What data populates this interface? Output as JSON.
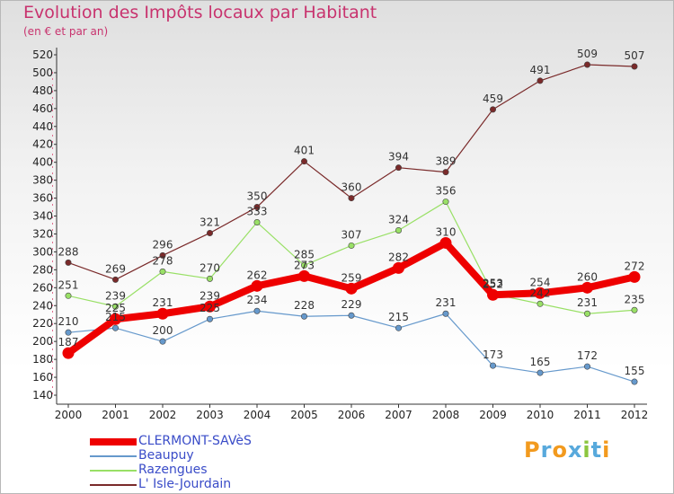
{
  "title": "Evolution des Impôts locaux par Habitant",
  "subtitle": "(en € et par an)",
  "logo": {
    "text": "Proxiti",
    "letters": [
      {
        "ch": "P",
        "color": "#f29a1e"
      },
      {
        "ch": "r",
        "color": "#58a9dc"
      },
      {
        "ch": "o",
        "color": "#f29a1e"
      },
      {
        "ch": "x",
        "color": "#58a9dc"
      },
      {
        "ch": "i",
        "color": "#8cc63f"
      },
      {
        "ch": "t",
        "color": "#58a9dc"
      },
      {
        "ch": "i",
        "color": "#f29a1e"
      }
    ]
  },
  "chart_data": {
    "type": "line",
    "title": "Evolution des Impôts locaux par Habitant",
    "subtitle": "(en € et par an)",
    "xlabel": "",
    "ylabel": "",
    "x": [
      "2000",
      "2001",
      "2002",
      "2003",
      "2004",
      "2005",
      "2006",
      "2007",
      "2008",
      "2009",
      "2010",
      "2011",
      "2012"
    ],
    "ylim": [
      140,
      520
    ],
    "yticks": [
      140,
      160,
      180,
      200,
      220,
      240,
      260,
      280,
      300,
      320,
      340,
      360,
      380,
      400,
      420,
      440,
      460,
      480,
      500,
      520
    ],
    "grid": false,
    "legend_position": "bottom-left",
    "series": [
      {
        "name": "CLERMONT-SAVèS",
        "color": "#ee0000",
        "emphasis": "thick",
        "values": [
          187,
          225,
          231,
          239,
          262,
          273,
          259,
          282,
          310,
          252,
          254,
          260,
          272
        ],
        "labels": [
          "187",
          "225",
          "231",
          "239",
          "262",
          "273",
          "259",
          "282",
          "310",
          "252",
          "254",
          "260",
          "272"
        ]
      },
      {
        "name": "Beaupuy",
        "color": "#6699cc",
        "emphasis": "thin",
        "values": [
          210,
          215,
          200,
          225,
          234,
          228,
          229,
          215,
          231,
          173,
          165,
          172,
          155
        ],
        "labels": [
          "210",
          "215",
          "200",
          "225",
          "234",
          "228",
          "229",
          "215",
          "231",
          "173",
          "165",
          "172",
          "155"
        ]
      },
      {
        "name": "Razengues",
        "color": "#99e066",
        "emphasis": "thin",
        "values": [
          251,
          239,
          278,
          270,
          333,
          285,
          307,
          324,
          356,
          253,
          242,
          231,
          235
        ],
        "labels": [
          "251",
          "239",
          "278",
          "270",
          "333",
          "285",
          "307",
          "324",
          "356",
          "253",
          "242",
          "231",
          "235"
        ]
      },
      {
        "name": "L' Isle-Jourdain",
        "color": "#7a2a2a",
        "emphasis": "thin",
        "values": [
          288,
          269,
          296,
          321,
          350,
          401,
          360,
          394,
          389,
          459,
          491,
          509,
          507
        ],
        "labels": [
          "288",
          "269",
          "296",
          "321",
          "350",
          "401",
          "360",
          "394",
          "389",
          "459",
          "491",
          "509",
          "507"
        ]
      }
    ]
  }
}
